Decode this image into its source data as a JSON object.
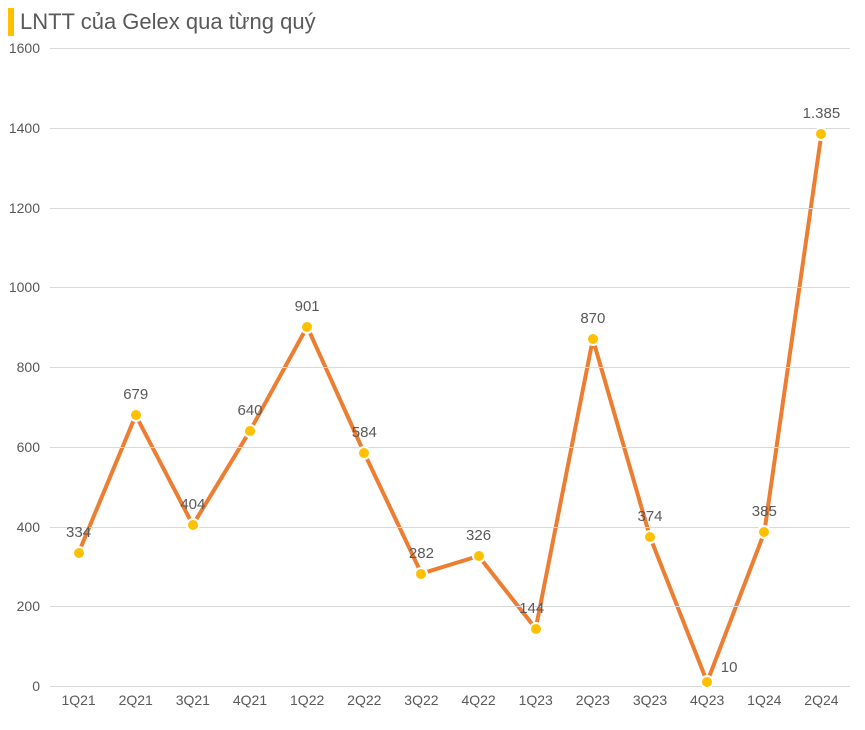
{
  "chart": {
    "type": "line",
    "title": "LNTT của Gelex qua từng quý",
    "title_bar_color": "#ffc000",
    "title_color": "#595959",
    "title_fontsize": 22,
    "background_color": "#ffffff",
    "grid_color": "#d9d9d9",
    "axis_label_color": "#595959",
    "axis_label_fontsize": 14,
    "data_label_color": "#595959",
    "data_label_fontsize": 15,
    "line_color": "#ed7d31",
    "line_width": 4,
    "marker_fill": "#ffc000",
    "marker_stroke": "#ffffff",
    "marker_size": 14,
    "ylim": [
      0,
      1600
    ],
    "ytick_step": 200,
    "yticks": [
      0,
      200,
      400,
      600,
      800,
      1000,
      1200,
      1400,
      1600
    ],
    "categories": [
      "1Q21",
      "2Q21",
      "3Q21",
      "4Q21",
      "1Q22",
      "2Q22",
      "3Q22",
      "4Q22",
      "1Q23",
      "2Q23",
      "3Q23",
      "4Q23",
      "1Q24",
      "2Q24"
    ],
    "values": [
      334,
      679,
      404,
      640,
      901,
      584,
      282,
      326,
      144,
      870,
      374,
      10,
      385,
      1385
    ],
    "labels": [
      "334",
      "679",
      "404",
      "640",
      "901",
      "584",
      "282",
      "326",
      "144",
      "870",
      "374",
      "10",
      "385",
      "1.385"
    ],
    "label_offset_x": [
      0,
      0,
      0,
      0,
      0,
      0,
      0,
      0,
      -4,
      0,
      0,
      22,
      0,
      0
    ],
    "label_offset_y": [
      -12,
      -12,
      -12,
      -12,
      -12,
      -12,
      -12,
      -12,
      -12,
      -12,
      -12,
      -6,
      -12,
      -12
    ]
  }
}
